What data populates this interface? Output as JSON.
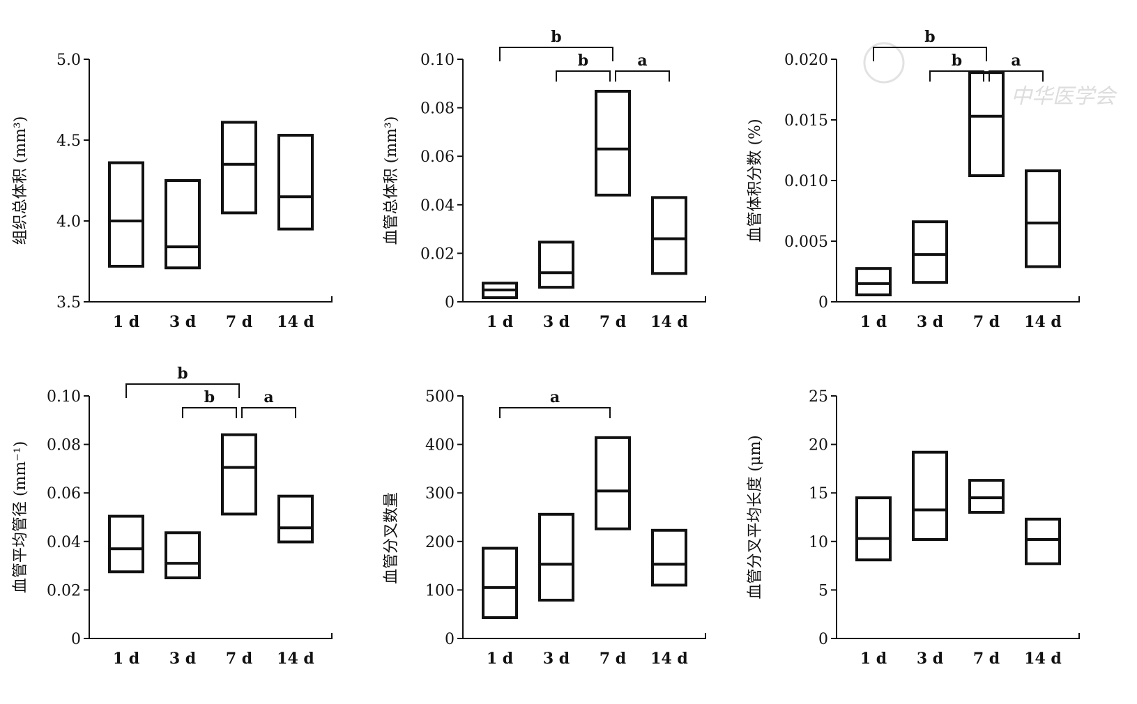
{
  "watermark": "中华医学会",
  "chart_data": [
    {
      "type": "floating-box",
      "ylabel": "组织总体积 (mm³)",
      "categories": [
        "1 d",
        "3 d",
        "7 d",
        "14 d"
      ],
      "ylim": [
        3.5,
        5.0
      ],
      "yticks": [
        "3.5",
        "4.0",
        "4.5",
        "5.0"
      ],
      "min": [
        3.72,
        3.71,
        4.05,
        3.95
      ],
      "median": [
        4.0,
        3.84,
        4.35,
        4.15
      ],
      "max": [
        4.36,
        4.25,
        4.61,
        4.53
      ],
      "significance": []
    },
    {
      "type": "floating-box",
      "ylabel": "血管总体积 (mm³)",
      "categories": [
        "1 d",
        "3 d",
        "7 d",
        "14 d"
      ],
      "ylim": [
        0,
        0.1
      ],
      "yticks": [
        "0",
        "0.02",
        "0.04",
        "0.06",
        "0.08",
        "0.10"
      ],
      "min": [
        0.0017,
        0.006,
        0.044,
        0.0117
      ],
      "median": [
        0.0049,
        0.012,
        0.063,
        0.026
      ],
      "max": [
        0.0077,
        0.0246,
        0.0868,
        0.043
      ],
      "significance": [
        {
          "from": "1 d",
          "to": "7 d",
          "label": "b",
          "level": 2
        },
        {
          "from": "3 d",
          "to": "7 d",
          "label": "b",
          "level": 1
        },
        {
          "from": "7 d",
          "to": "14 d",
          "label": "a",
          "level": 1
        }
      ]
    },
    {
      "type": "floating-box",
      "ylabel": "血管体积分数 (%)",
      "categories": [
        "1 d",
        "3 d",
        "7 d",
        "14 d"
      ],
      "ylim": [
        0,
        0.02
      ],
      "yticks": [
        "0",
        "0.005",
        "0.010",
        "0.015",
        "0.020"
      ],
      "min": [
        0.00057,
        0.0016,
        0.0104,
        0.0029
      ],
      "median": [
        0.0015,
        0.0039,
        0.0153,
        0.0065
      ],
      "max": [
        0.00275,
        0.0066,
        0.0189,
        0.0108
      ],
      "significance": [
        {
          "from": "1 d",
          "to": "7 d",
          "label": "b",
          "level": 2
        },
        {
          "from": "3 d",
          "to": "7 d",
          "label": "b",
          "level": 1
        },
        {
          "from": "7 d",
          "to": "14 d",
          "label": "a",
          "level": 1
        }
      ]
    },
    {
      "type": "floating-box",
      "ylabel": "血管平均管径 (mm⁻¹)",
      "categories": [
        "1 d",
        "3 d",
        "7 d",
        "14 d"
      ],
      "ylim": [
        0,
        0.1
      ],
      "yticks": [
        "0",
        "0.02",
        "0.04",
        "0.06",
        "0.08",
        "0.10"
      ],
      "min": [
        0.0275,
        0.025,
        0.0513,
        0.0398
      ],
      "median": [
        0.037,
        0.031,
        0.0705,
        0.0456
      ],
      "max": [
        0.0504,
        0.0436,
        0.084,
        0.0587
      ],
      "significance": [
        {
          "from": "1 d",
          "to": "7 d",
          "label": "b",
          "level": 2
        },
        {
          "from": "3 d",
          "to": "7 d",
          "label": "b",
          "level": 1
        },
        {
          "from": "7 d",
          "to": "14 d",
          "label": "a",
          "level": 1
        }
      ]
    },
    {
      "type": "floating-box",
      "ylabel": "血管分叉数量",
      "categories": [
        "1 d",
        "3 d",
        "7 d",
        "14 d"
      ],
      "ylim": [
        0,
        500
      ],
      "yticks": [
        "0",
        "100",
        "200",
        "300",
        "400",
        "500"
      ],
      "min": [
        43,
        79,
        226,
        110
      ],
      "median": [
        105,
        153,
        304,
        153
      ],
      "max": [
        186,
        256,
        414,
        223
      ],
      "significance": [
        {
          "from": "1 d",
          "to": "7 d",
          "label": "a",
          "level": 1
        }
      ]
    },
    {
      "type": "floating-box",
      "ylabel": "血管分叉平均长度 (μm)",
      "categories": [
        "1 d",
        "3 d",
        "7 d",
        "14 d"
      ],
      "ylim": [
        0,
        25
      ],
      "yticks": [
        "0",
        "5",
        "10",
        "15",
        "20",
        "25"
      ],
      "min": [
        8.1,
        10.2,
        13.0,
        7.7
      ],
      "median": [
        10.3,
        13.25,
        14.5,
        10.2
      ],
      "max": [
        14.5,
        19.2,
        16.3,
        12.3
      ],
      "significance": []
    }
  ]
}
